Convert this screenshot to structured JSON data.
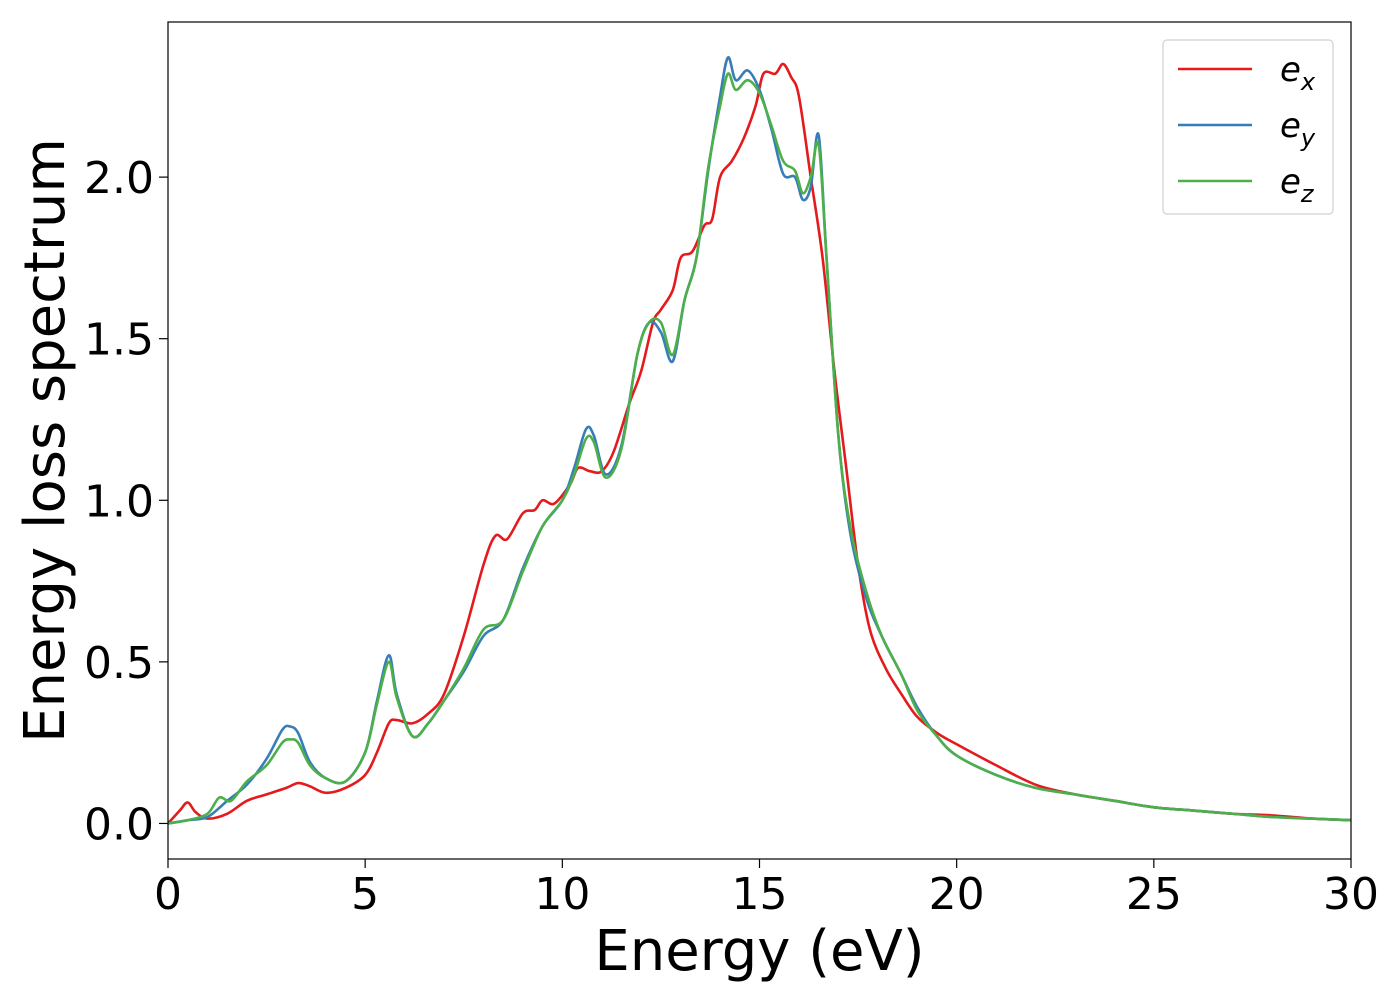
{
  "chart_data": {
    "type": "line",
    "title": "",
    "xlabel": "Energy (eV)",
    "ylabel": "Energy loss spectrum",
    "xlim": [
      0,
      30
    ],
    "ylim": [
      -0.11,
      2.48
    ],
    "xticks": [
      0,
      5,
      10,
      15,
      20,
      25,
      30
    ],
    "xtick_labels": [
      "0",
      "5",
      "10",
      "15",
      "20",
      "25",
      "30"
    ],
    "yticks": [
      0.0,
      0.5,
      1.0,
      1.5,
      2.0
    ],
    "ytick_labels": [
      "0.0",
      "0.5",
      "1.0",
      "1.5",
      "2.0"
    ],
    "grid": false,
    "legend_position": "top-right",
    "series": [
      {
        "name": "e_x",
        "legend_base": "e",
        "legend_sub": "x",
        "color": "#e41a1c",
        "x": [
          0,
          0.3,
          0.5,
          0.7,
          1.0,
          1.5,
          2.0,
          2.5,
          3.0,
          3.3,
          3.6,
          4.0,
          4.5,
          5.0,
          5.3,
          5.6,
          5.8,
          6.2,
          6.6,
          7.0,
          7.5,
          8.0,
          8.3,
          8.6,
          9.0,
          9.3,
          9.5,
          9.8,
          10.2,
          10.4,
          10.7,
          11.0,
          11.3,
          11.7,
          12.0,
          12.3,
          12.5,
          12.8,
          13.0,
          13.3,
          13.6,
          13.8,
          14.0,
          14.3,
          14.6,
          14.9,
          15.1,
          15.4,
          15.6,
          15.8,
          16.0,
          16.3,
          16.6,
          16.9,
          17.2,
          17.5,
          17.8,
          18.2,
          18.6,
          19.0,
          19.5,
          20.0,
          21.0,
          22.0,
          23.0,
          24.0,
          25.0,
          26.0,
          27.0,
          28.0,
          29.0,
          30.0
        ],
        "values": [
          0.0,
          0.04,
          0.065,
          0.035,
          0.015,
          0.03,
          0.07,
          0.09,
          0.11,
          0.125,
          0.115,
          0.095,
          0.11,
          0.15,
          0.22,
          0.31,
          0.32,
          0.31,
          0.34,
          0.4,
          0.58,
          0.8,
          0.89,
          0.88,
          0.96,
          0.97,
          1.0,
          0.99,
          1.05,
          1.1,
          1.09,
          1.09,
          1.15,
          1.3,
          1.4,
          1.55,
          1.59,
          1.65,
          1.75,
          1.77,
          1.85,
          1.87,
          2.0,
          2.05,
          2.12,
          2.22,
          2.32,
          2.32,
          2.35,
          2.31,
          2.25,
          2.0,
          1.75,
          1.4,
          1.1,
          0.8,
          0.6,
          0.48,
          0.4,
          0.33,
          0.28,
          0.245,
          0.18,
          0.12,
          0.09,
          0.07,
          0.05,
          0.04,
          0.03,
          0.025,
          0.015,
          0.01
        ]
      },
      {
        "name": "e_y",
        "legend_base": "e",
        "legend_sub": "y",
        "color": "#377eb8",
        "x": [
          0,
          0.5,
          1.0,
          1.5,
          2.0,
          2.5,
          2.9,
          3.1,
          3.3,
          3.6,
          4.0,
          4.5,
          5.0,
          5.3,
          5.6,
          5.8,
          6.2,
          6.6,
          7.0,
          7.5,
          8.0,
          8.5,
          9.0,
          9.5,
          10.0,
          10.3,
          10.6,
          10.8,
          11.1,
          11.5,
          11.9,
          12.2,
          12.5,
          12.8,
          13.1,
          13.4,
          13.7,
          14.0,
          14.2,
          14.4,
          14.7,
          15.0,
          15.3,
          15.6,
          15.9,
          16.1,
          16.3,
          16.5,
          16.7,
          17.0,
          17.3,
          17.7,
          18.1,
          18.6,
          19.0,
          19.5,
          20.0,
          21.0,
          22.0,
          23.0,
          24.0,
          25.0,
          26.0,
          27.0,
          28.0,
          29.0,
          30.0
        ],
        "values": [
          0.0,
          0.01,
          0.02,
          0.07,
          0.12,
          0.2,
          0.29,
          0.3,
          0.28,
          0.19,
          0.14,
          0.13,
          0.22,
          0.38,
          0.52,
          0.4,
          0.27,
          0.31,
          0.38,
          0.47,
          0.58,
          0.63,
          0.79,
          0.92,
          1.0,
          1.1,
          1.22,
          1.2,
          1.08,
          1.17,
          1.45,
          1.55,
          1.52,
          1.43,
          1.62,
          1.75,
          2.02,
          2.25,
          2.37,
          2.3,
          2.33,
          2.27,
          2.15,
          2.01,
          2.0,
          1.93,
          1.97,
          2.13,
          1.75,
          1.2,
          0.9,
          0.7,
          0.58,
          0.46,
          0.36,
          0.27,
          0.21,
          0.15,
          0.11,
          0.09,
          0.07,
          0.05,
          0.04,
          0.03,
          0.02,
          0.015,
          0.01
        ]
      },
      {
        "name": "e_z",
        "legend_base": "e",
        "legend_sub": "z",
        "color": "#4daf4a",
        "x": [
          0,
          0.5,
          1.0,
          1.3,
          1.6,
          2.0,
          2.5,
          2.9,
          3.1,
          3.3,
          3.6,
          4.0,
          4.5,
          5.0,
          5.3,
          5.6,
          5.8,
          6.2,
          6.6,
          7.0,
          7.5,
          8.0,
          8.5,
          9.0,
          9.5,
          10.0,
          10.3,
          10.6,
          10.8,
          11.1,
          11.5,
          11.9,
          12.2,
          12.5,
          12.8,
          13.1,
          13.4,
          13.7,
          14.0,
          14.2,
          14.4,
          14.7,
          15.0,
          15.3,
          15.6,
          15.9,
          16.1,
          16.3,
          16.5,
          16.7,
          17.0,
          17.3,
          17.7,
          18.1,
          18.6,
          19.0,
          19.5,
          20.0,
          21.0,
          22.0,
          23.0,
          24.0,
          25.0,
          26.0,
          27.0,
          28.0,
          29.0,
          30.0
        ],
        "values": [
          0.0,
          0.01,
          0.03,
          0.08,
          0.07,
          0.13,
          0.18,
          0.25,
          0.26,
          0.25,
          0.18,
          0.14,
          0.13,
          0.22,
          0.37,
          0.5,
          0.39,
          0.27,
          0.31,
          0.38,
          0.48,
          0.6,
          0.63,
          0.78,
          0.92,
          1.0,
          1.08,
          1.19,
          1.18,
          1.07,
          1.16,
          1.45,
          1.55,
          1.55,
          1.45,
          1.62,
          1.75,
          2.03,
          2.22,
          2.32,
          2.27,
          2.3,
          2.26,
          2.16,
          2.05,
          2.02,
          1.95,
          2.0,
          2.1,
          1.75,
          1.2,
          0.92,
          0.72,
          0.58,
          0.46,
          0.35,
          0.27,
          0.21,
          0.15,
          0.11,
          0.09,
          0.07,
          0.05,
          0.04,
          0.03,
          0.02,
          0.015,
          0.01
        ]
      }
    ]
  }
}
